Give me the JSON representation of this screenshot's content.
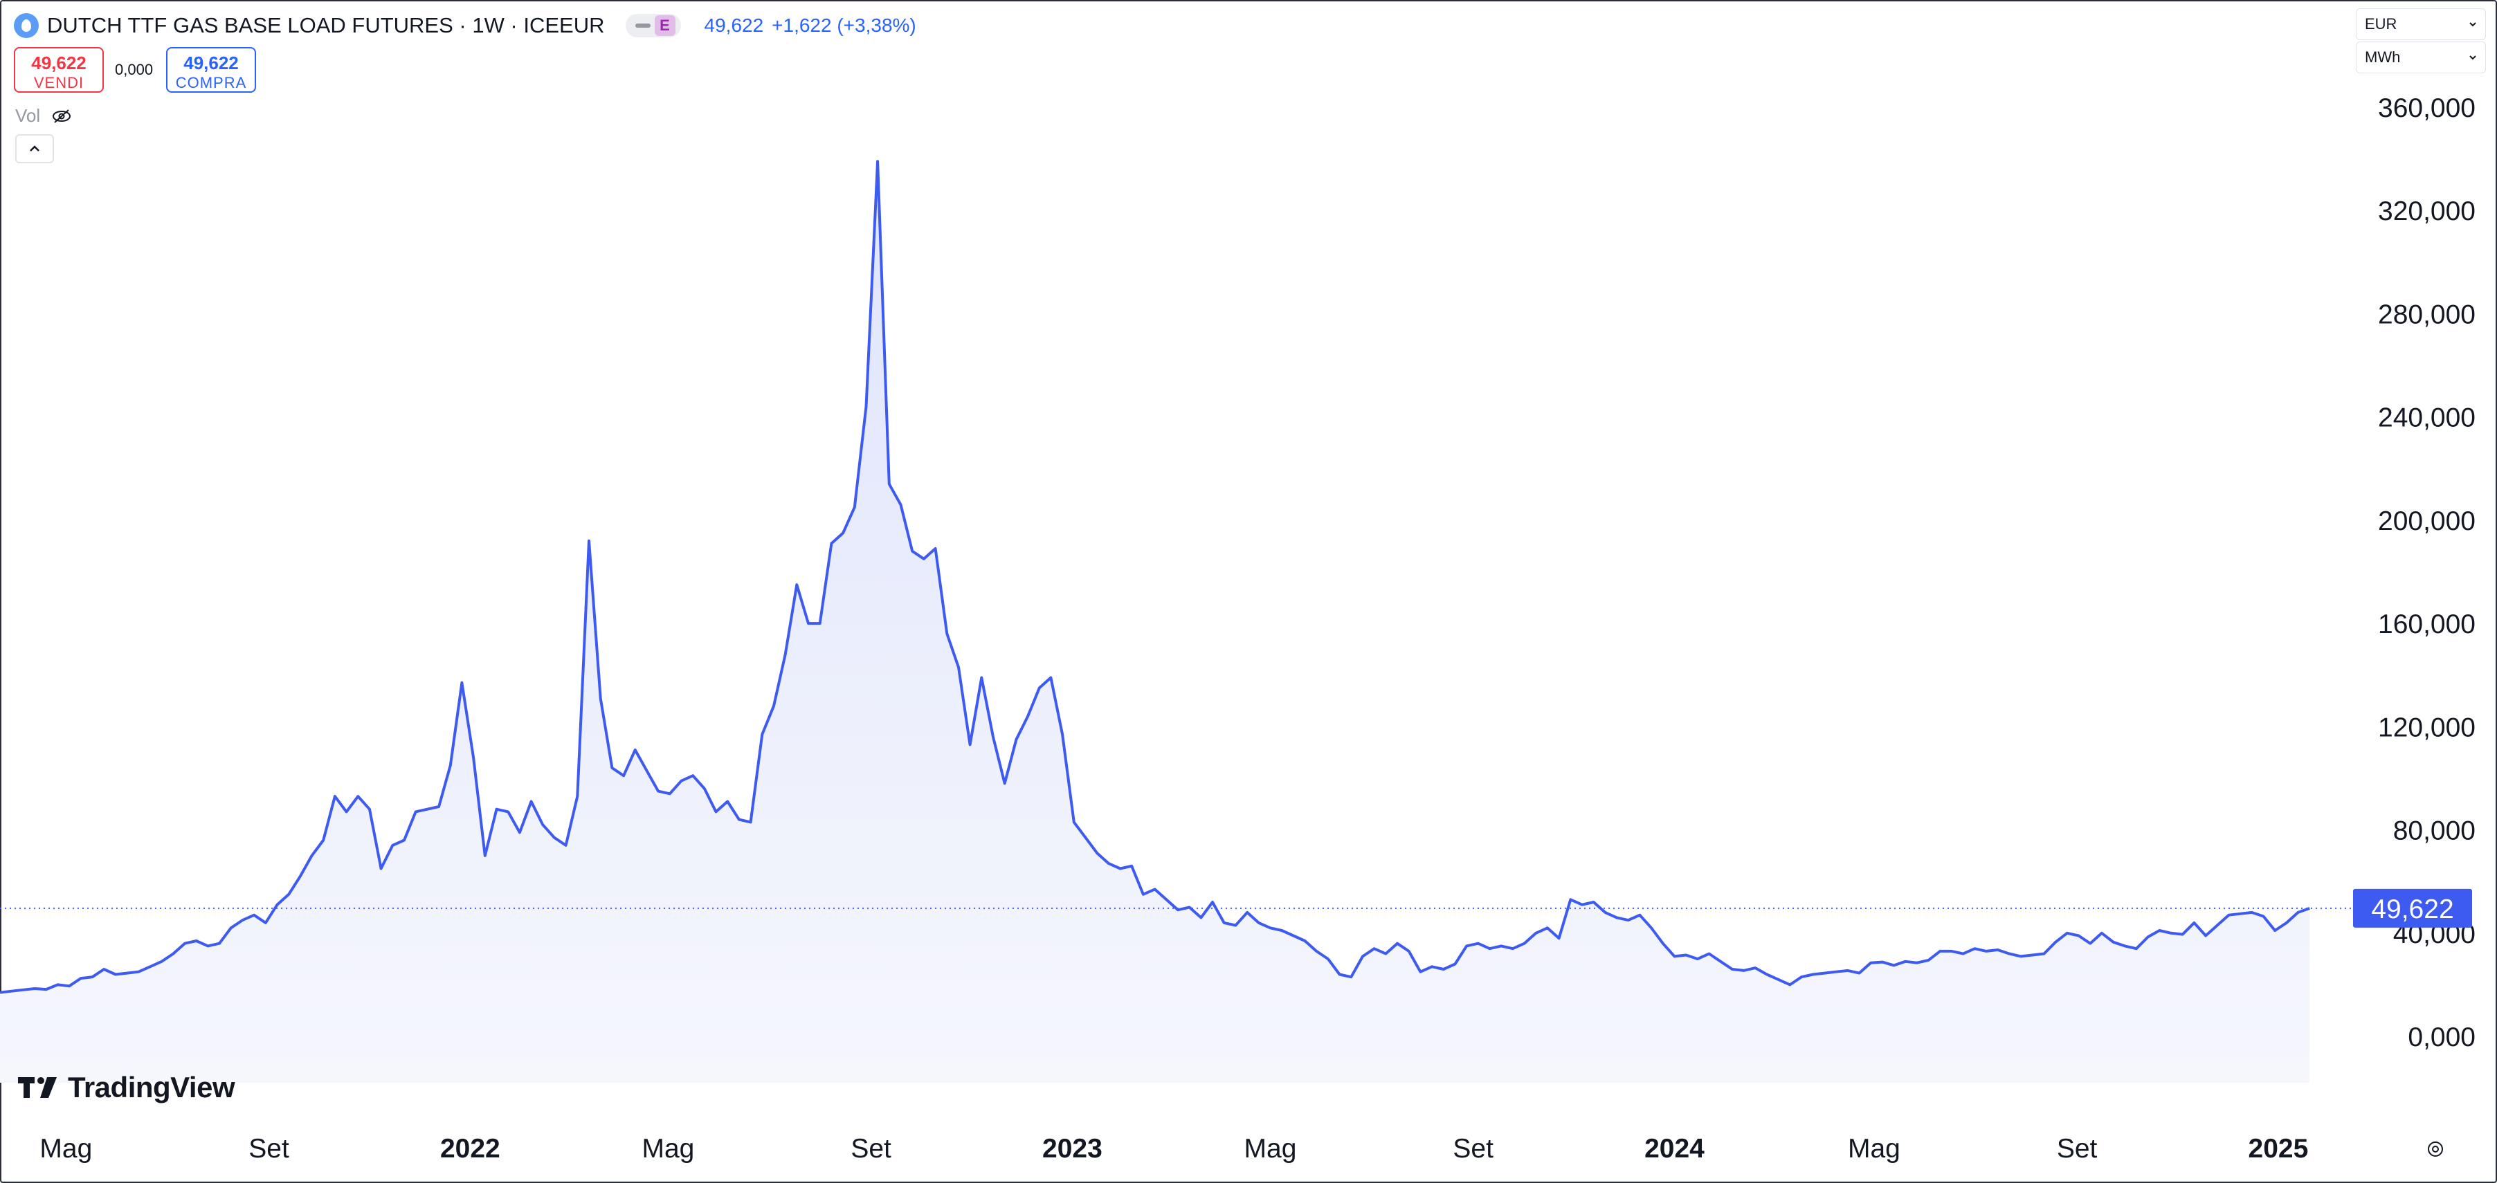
{
  "header": {
    "symbol_title": "DUTCH TTF GAS BASE LOAD FUTURES · 1W · ICEEUR",
    "exchange_badge": "E",
    "last_price": "49,622",
    "change": "+1,622 (+3,38%)",
    "symbol_icon": "flame-icon"
  },
  "trade": {
    "sell_price": "49,622",
    "sell_label": "VENDI",
    "spread": "0,000",
    "buy_price": "49,622",
    "buy_label": "COMPRA"
  },
  "volume": {
    "label": "Vol",
    "icon": "eye-off-icon"
  },
  "units": {
    "currency": "EUR",
    "unit": "MWh"
  },
  "branding": {
    "logo_text": "TradingView"
  },
  "colors": {
    "line": "#3d5af1",
    "fill_top": "#dfe4fb",
    "fill_bottom": "#f6f7fd",
    "price_label": "#3d5af1",
    "sell": "#f23645",
    "buy": "#2962ff"
  },
  "chart_data": {
    "type": "area",
    "xlabel": "",
    "ylabel": "",
    "ylim": [
      -20,
      370
    ],
    "xlim": [
      "2021-03-22",
      "2025-01-22"
    ],
    "y_tick_values": [
      0,
      40,
      80,
      120,
      160,
      200,
      240,
      280,
      320,
      360
    ],
    "y_ticks": [
      "0,000",
      "40,000",
      "80,000",
      "120,000",
      "160,000",
      "200,000",
      "240,000",
      "280,000",
      "320,000",
      "360,000"
    ],
    "x_ticks": [
      {
        "date": "2021-05-01",
        "label": "Mag",
        "bold": false
      },
      {
        "date": "2021-09-01",
        "label": "Set",
        "bold": false
      },
      {
        "date": "2022-01-01",
        "label": "2022",
        "bold": true
      },
      {
        "date": "2022-05-01",
        "label": "Mag",
        "bold": false
      },
      {
        "date": "2022-09-01",
        "label": "Set",
        "bold": false
      },
      {
        "date": "2023-01-01",
        "label": "2023",
        "bold": true
      },
      {
        "date": "2023-05-01",
        "label": "Mag",
        "bold": false
      },
      {
        "date": "2023-09-01",
        "label": "Set",
        "bold": false
      },
      {
        "date": "2024-01-01",
        "label": "2024",
        "bold": true
      },
      {
        "date": "2024-05-01",
        "label": "Mag",
        "bold": false
      },
      {
        "date": "2024-09-01",
        "label": "Set",
        "bold": false
      },
      {
        "date": "2025-01-01",
        "label": "2025",
        "bold": true
      }
    ],
    "last_value": 49.622,
    "last_value_label": "49,622",
    "series": [
      {
        "values": [
          [
            "2021-03-22",
            17
          ],
          [
            "2021-03-29",
            17.5
          ],
          [
            "2021-04-05",
            18
          ],
          [
            "2021-04-12",
            18.5
          ],
          [
            "2021-04-19",
            18.2
          ],
          [
            "2021-04-26",
            20
          ],
          [
            "2021-05-03",
            19.5
          ],
          [
            "2021-05-10",
            22.5
          ],
          [
            "2021-05-17",
            23
          ],
          [
            "2021-05-24",
            26
          ],
          [
            "2021-05-31",
            24
          ],
          [
            "2021-06-07",
            24.5
          ],
          [
            "2021-06-14",
            25
          ],
          [
            "2021-06-21",
            27
          ],
          [
            "2021-06-28",
            29
          ],
          [
            "2021-07-05",
            32
          ],
          [
            "2021-07-12",
            36
          ],
          [
            "2021-07-19",
            37
          ],
          [
            "2021-07-26",
            35
          ],
          [
            "2021-08-02",
            36
          ],
          [
            "2021-08-09",
            42
          ],
          [
            "2021-08-16",
            45
          ],
          [
            "2021-08-23",
            47
          ],
          [
            "2021-08-30",
            44
          ],
          [
            "2021-09-06",
            51
          ],
          [
            "2021-09-13",
            55
          ],
          [
            "2021-09-20",
            62
          ],
          [
            "2021-09-27",
            70
          ],
          [
            "2021-10-04",
            76
          ],
          [
            "2021-10-11",
            93
          ],
          [
            "2021-10-18",
            87
          ],
          [
            "2021-10-25",
            93
          ],
          [
            "2021-11-01",
            88
          ],
          [
            "2021-11-08",
            65
          ],
          [
            "2021-11-15",
            74
          ],
          [
            "2021-11-22",
            76
          ],
          [
            "2021-11-29",
            87
          ],
          [
            "2021-12-06",
            88
          ],
          [
            "2021-12-13",
            89
          ],
          [
            "2021-12-20",
            105
          ],
          [
            "2021-12-27",
            137
          ],
          [
            "2022-01-03",
            108
          ],
          [
            "2022-01-10",
            70
          ],
          [
            "2022-01-17",
            88
          ],
          [
            "2022-01-24",
            87
          ],
          [
            "2022-01-31",
            79
          ],
          [
            "2022-02-07",
            91
          ],
          [
            "2022-02-14",
            82
          ],
          [
            "2022-02-21",
            77
          ],
          [
            "2022-02-28",
            74
          ],
          [
            "2022-03-07",
            93
          ],
          [
            "2022-03-14",
            192
          ],
          [
            "2022-03-21",
            131
          ],
          [
            "2022-03-28",
            104
          ],
          [
            "2022-04-04",
            101
          ],
          [
            "2022-04-11",
            111
          ],
          [
            "2022-04-18",
            103
          ],
          [
            "2022-04-25",
            95
          ],
          [
            "2022-05-02",
            94
          ],
          [
            "2022-05-09",
            99
          ],
          [
            "2022-05-16",
            101
          ],
          [
            "2022-05-23",
            96
          ],
          [
            "2022-05-30",
            87
          ],
          [
            "2022-06-06",
            91
          ],
          [
            "2022-06-13",
            84
          ],
          [
            "2022-06-20",
            83
          ],
          [
            "2022-06-27",
            117
          ],
          [
            "2022-07-04",
            128
          ],
          [
            "2022-07-11",
            148
          ],
          [
            "2022-07-18",
            175
          ],
          [
            "2022-07-25",
            160
          ],
          [
            "2022-08-01",
            160
          ],
          [
            "2022-08-08",
            191
          ],
          [
            "2022-08-15",
            195
          ],
          [
            "2022-08-22",
            205
          ],
          [
            "2022-08-29",
            244
          ],
          [
            "2022-09-05",
            339
          ],
          [
            "2022-09-12",
            214
          ],
          [
            "2022-09-19",
            206
          ],
          [
            "2022-09-26",
            188
          ],
          [
            "2022-10-03",
            185
          ],
          [
            "2022-10-10",
            189
          ],
          [
            "2022-10-17",
            156
          ],
          [
            "2022-10-24",
            143
          ],
          [
            "2022-10-31",
            113
          ],
          [
            "2022-11-07",
            139
          ],
          [
            "2022-11-14",
            116
          ],
          [
            "2022-11-21",
            98
          ],
          [
            "2022-11-28",
            115
          ],
          [
            "2022-12-05",
            124
          ],
          [
            "2022-12-12",
            135
          ],
          [
            "2022-12-19",
            139
          ],
          [
            "2022-12-26",
            117
          ],
          [
            "2023-01-02",
            83
          ],
          [
            "2023-01-09",
            77
          ],
          [
            "2023-01-16",
            71
          ],
          [
            "2023-01-23",
            67
          ],
          [
            "2023-01-30",
            65
          ],
          [
            "2023-02-06",
            66
          ],
          [
            "2023-02-13",
            55
          ],
          [
            "2023-02-20",
            57
          ],
          [
            "2023-02-27",
            53
          ],
          [
            "2023-03-06",
            49
          ],
          [
            "2023-03-13",
            50
          ],
          [
            "2023-03-20",
            46
          ],
          [
            "2023-03-27",
            52
          ],
          [
            "2023-04-03",
            44
          ],
          [
            "2023-04-10",
            43
          ],
          [
            "2023-04-17",
            48
          ],
          [
            "2023-04-24",
            44
          ],
          [
            "2023-05-01",
            42
          ],
          [
            "2023-05-08",
            41
          ],
          [
            "2023-05-15",
            39
          ],
          [
            "2023-05-22",
            37
          ],
          [
            "2023-05-29",
            33
          ],
          [
            "2023-06-05",
            30
          ],
          [
            "2023-06-12",
            24
          ],
          [
            "2023-06-19",
            23
          ],
          [
            "2023-06-26",
            31
          ],
          [
            "2023-07-03",
            34
          ],
          [
            "2023-07-10",
            32
          ],
          [
            "2023-07-17",
            36
          ],
          [
            "2023-07-24",
            33
          ],
          [
            "2023-07-31",
            25
          ],
          [
            "2023-08-07",
            27
          ],
          [
            "2023-08-14",
            26
          ],
          [
            "2023-08-21",
            28
          ],
          [
            "2023-08-28",
            35
          ],
          [
            "2023-09-04",
            36
          ],
          [
            "2023-09-11",
            34
          ],
          [
            "2023-09-18",
            35
          ],
          [
            "2023-09-25",
            34
          ],
          [
            "2023-10-02",
            36
          ],
          [
            "2023-10-09",
            40
          ],
          [
            "2023-10-16",
            42
          ],
          [
            "2023-10-23",
            38
          ],
          [
            "2023-10-30",
            53
          ],
          [
            "2023-11-06",
            51
          ],
          [
            "2023-11-13",
            52
          ],
          [
            "2023-11-20",
            48
          ],
          [
            "2023-11-27",
            46
          ],
          [
            "2023-12-04",
            45
          ],
          [
            "2023-12-11",
            47
          ],
          [
            "2023-12-18",
            42
          ],
          [
            "2023-12-25",
            36
          ],
          [
            "2024-01-01",
            31
          ],
          [
            "2024-01-08",
            31.5
          ],
          [
            "2024-01-15",
            30
          ],
          [
            "2024-01-22",
            32
          ],
          [
            "2024-01-29",
            29
          ],
          [
            "2024-02-05",
            26
          ],
          [
            "2024-02-12",
            25.5
          ],
          [
            "2024-02-19",
            26.5
          ],
          [
            "2024-02-26",
            24
          ],
          [
            "2024-03-04",
            22
          ],
          [
            "2024-03-11",
            20
          ],
          [
            "2024-03-18",
            23
          ],
          [
            "2024-03-25",
            24
          ],
          [
            "2024-04-01",
            24.5
          ],
          [
            "2024-04-08",
            25
          ],
          [
            "2024-04-15",
            25.5
          ],
          [
            "2024-04-22",
            24.5
          ],
          [
            "2024-04-29",
            28.5
          ],
          [
            "2024-05-06",
            28.8
          ],
          [
            "2024-05-13",
            27.5
          ],
          [
            "2024-05-20",
            29
          ],
          [
            "2024-05-27",
            28.5
          ],
          [
            "2024-06-03",
            29.5
          ],
          [
            "2024-06-10",
            33
          ],
          [
            "2024-06-17",
            33
          ],
          [
            "2024-06-24",
            32
          ],
          [
            "2024-07-01",
            34
          ],
          [
            "2024-07-08",
            33
          ],
          [
            "2024-07-15",
            33.5
          ],
          [
            "2024-07-22",
            32
          ],
          [
            "2024-07-29",
            31
          ],
          [
            "2024-08-05",
            31.5
          ],
          [
            "2024-08-12",
            32
          ],
          [
            "2024-08-19",
            36.5
          ],
          [
            "2024-08-26",
            40
          ],
          [
            "2024-09-02",
            39
          ],
          [
            "2024-09-09",
            36
          ],
          [
            "2024-09-16",
            40
          ],
          [
            "2024-09-23",
            36.5
          ],
          [
            "2024-09-30",
            35
          ],
          [
            "2024-10-07",
            34
          ],
          [
            "2024-10-14",
            38.5
          ],
          [
            "2024-10-21",
            41
          ],
          [
            "2024-10-28",
            40
          ],
          [
            "2024-11-04",
            39.5
          ],
          [
            "2024-11-11",
            44
          ],
          [
            "2024-11-18",
            39
          ],
          [
            "2024-11-25",
            43
          ],
          [
            "2024-12-02",
            47
          ],
          [
            "2024-12-09",
            47.5
          ],
          [
            "2024-12-16",
            48
          ],
          [
            "2024-12-23",
            46.5
          ],
          [
            "2024-12-30",
            41
          ],
          [
            "2025-01-06",
            44
          ],
          [
            "2025-01-13",
            48
          ],
          [
            "2025-01-20",
            49.622
          ]
        ]
      }
    ]
  }
}
